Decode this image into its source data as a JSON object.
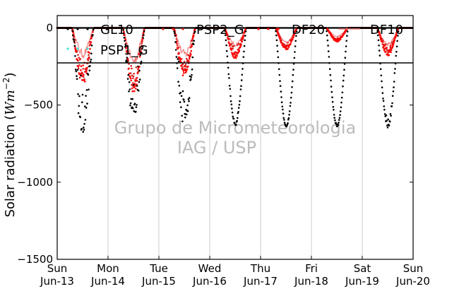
{
  "chart_data": {
    "type": "scatter",
    "ylabel": "Solar radiation (W m^-2)",
    "ylabel_parts": {
      "text": "Solar radiation ",
      "unit_open": "(",
      "unit_W": "W",
      "unit_m": "m",
      "unit_exp": "−2",
      "unit_close": ")"
    },
    "ylim": [
      -1500,
      80
    ],
    "xlim": [
      0,
      7
    ],
    "y_ticks": [
      0,
      -500,
      -1000,
      -1500
    ],
    "y_tick_labels": [
      "0",
      "−500",
      "−1000",
      "−1500"
    ],
    "x_ticks": [
      0,
      1,
      2,
      3,
      4,
      5,
      6,
      7
    ],
    "x_tick_labels": [
      {
        "day": "Sun",
        "date": "Jun-13"
      },
      {
        "day": "Mon",
        "date": "Jun-14"
      },
      {
        "day": "Tue",
        "date": "Jun-15"
      },
      {
        "day": "Wed",
        "date": "Jun-16"
      },
      {
        "day": "Thu",
        "date": "Jun-17"
      },
      {
        "day": "Fri",
        "date": "Jun-18"
      },
      {
        "day": "Sat",
        "date": "Jun-19"
      },
      {
        "day": "Sun",
        "date": "Jun-20"
      }
    ],
    "grid": "vertical",
    "legend_position": "top",
    "watermark": [
      "Grupo de Micrometeorologia",
      "IAG / USP"
    ],
    "series": [
      {
        "name": "GL10",
        "marker": "dot",
        "color": "#000000",
        "day_peaks": [
          -680,
          -620,
          -650,
          -630,
          -640,
          -640,
          -650
        ],
        "noise": [
          0.55,
          0.5,
          0.45,
          0.05,
          0.02,
          0.02,
          0.1
        ]
      },
      {
        "name": "PSP2_G",
        "marker": "dot",
        "color": "#d62020",
        "day_peaks": [
          -350,
          -400,
          -280,
          -180,
          -130,
          -80,
          -160
        ],
        "noise": [
          0.45,
          0.45,
          0.4,
          0.35,
          0.25,
          0.2,
          0.3
        ]
      },
      {
        "name": "DF20",
        "marker": "dot",
        "color": "#ff0000",
        "day_peaks": [
          -380,
          -420,
          -320,
          -200,
          -140,
          -90,
          -180
        ],
        "noise": [
          0.4,
          0.4,
          0.35,
          0.3,
          0.2,
          0.2,
          0.3
        ]
      },
      {
        "name": "DF10",
        "marker": "line",
        "color": "#f08080",
        "day_peaks": [
          -200,
          -250,
          -200,
          -120,
          -100,
          -60,
          -120
        ],
        "noise": [
          0.3,
          0.3,
          0.3,
          0.2,
          0.15,
          0.15,
          0.2
        ]
      },
      {
        "name": "PSP1_G",
        "marker": "dot",
        "color": "#40e0d0",
        "day_peaks": [],
        "noise": []
      }
    ]
  }
}
